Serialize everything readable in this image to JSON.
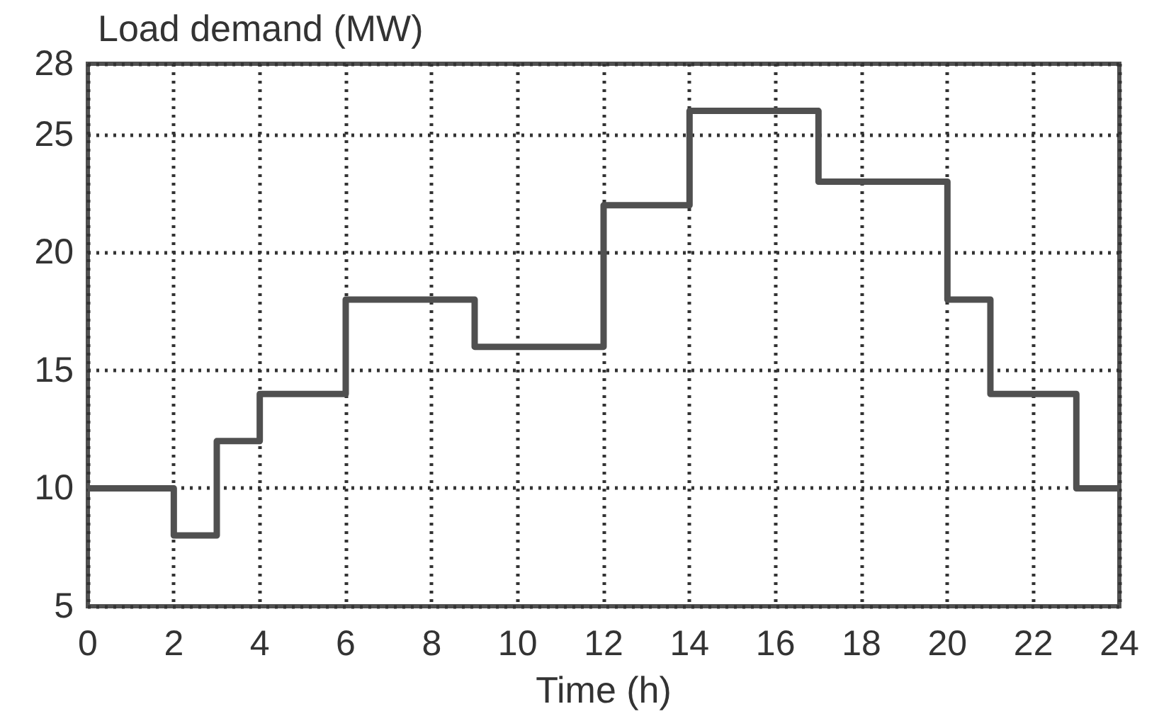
{
  "chart_data": {
    "type": "step",
    "ylabel": "Load demand (MW)",
    "xlabel": "Time (h)",
    "x": [
      0,
      2,
      3,
      4,
      6,
      9,
      12,
      14,
      17,
      20,
      21,
      23,
      24
    ],
    "series": [
      {
        "color": "#505050",
        "values": [
          10,
          8,
          12,
          14,
          18,
          16,
          22,
          26,
          23,
          18,
          14,
          10,
          10
        ]
      }
    ],
    "xlim": [
      0,
      24
    ],
    "xticks": [
      0,
      2,
      4,
      6,
      8,
      10,
      12,
      14,
      16,
      18,
      20,
      22,
      24
    ],
    "ylim": [
      5,
      28
    ],
    "yticks": [
      5,
      10,
      15,
      20,
      25,
      28
    ],
    "grid": true,
    "marker": "none",
    "line_style": "solid"
  }
}
